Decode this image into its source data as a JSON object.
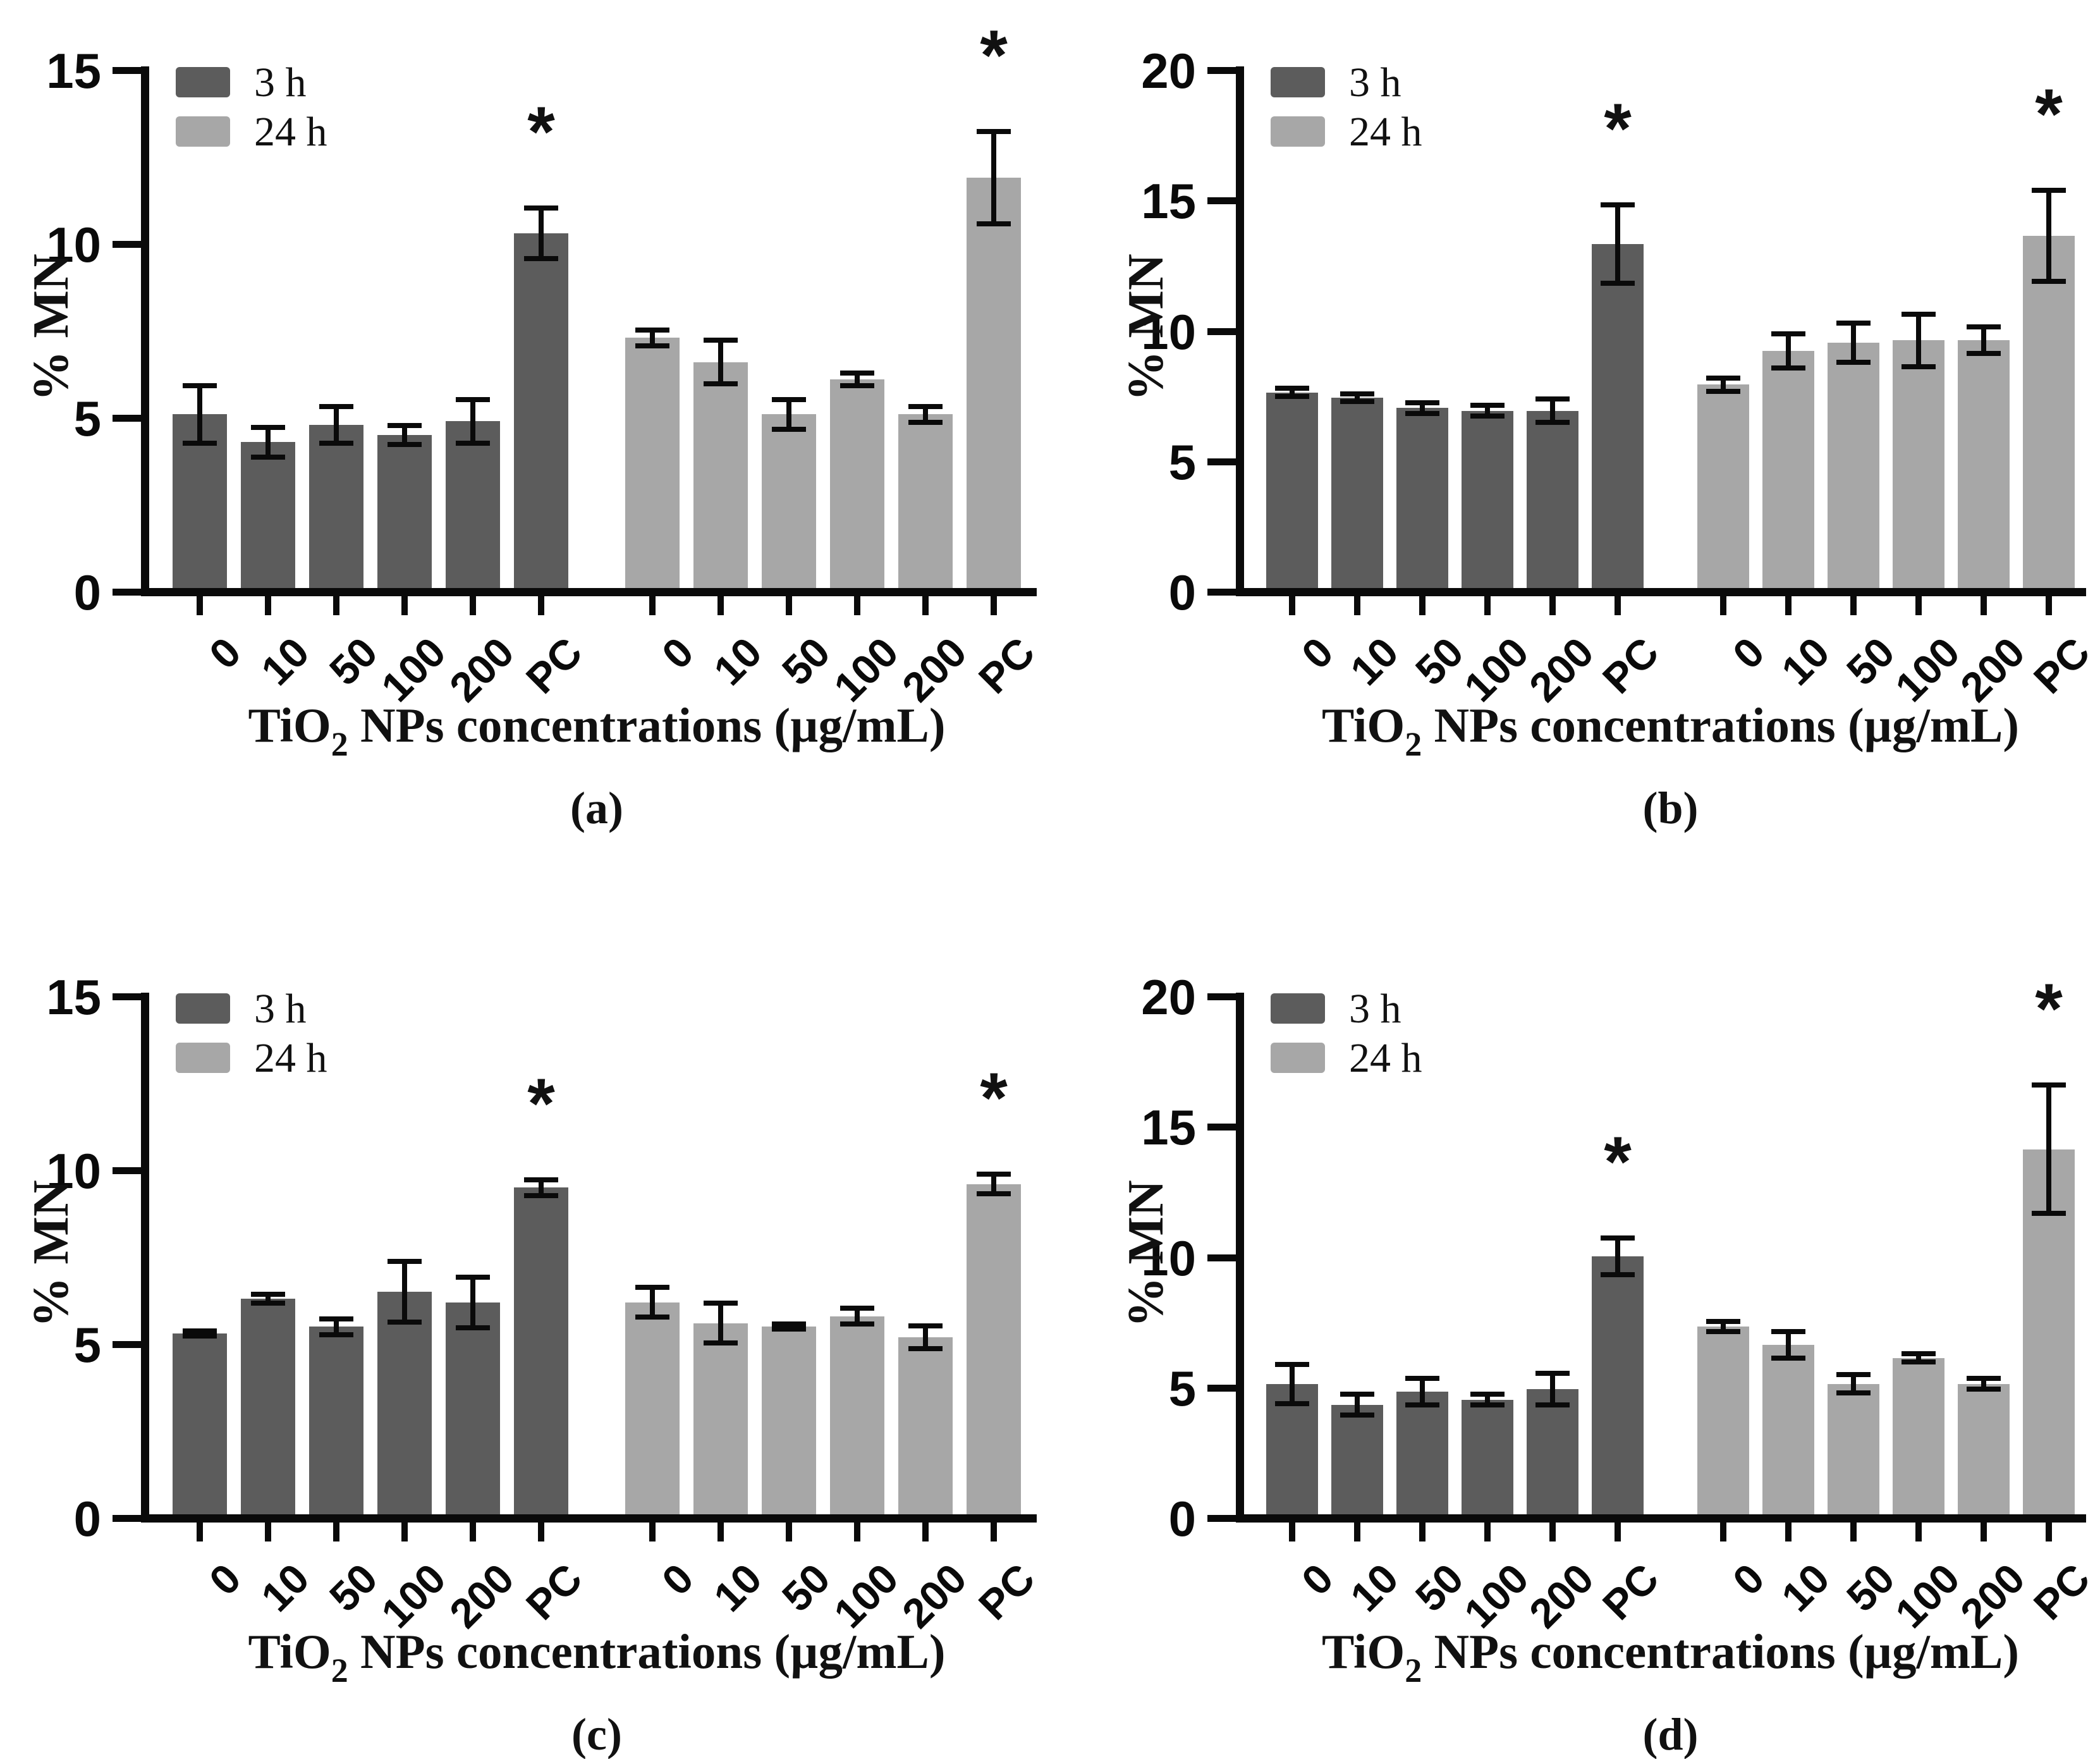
{
  "figure": {
    "background": "#ffffff",
    "axis_color": "#0a0a0a",
    "sig_marker": "*"
  },
  "legend": {
    "items": [
      {
        "label": "3 h",
        "color": "#5c5c5c"
      },
      {
        "label": "24 h",
        "color": "#a7a7a7"
      }
    ]
  },
  "chart_data": [
    {
      "id": "a",
      "type": "bar",
      "caption": "(a)",
      "ylabel": "% MN",
      "xlabel_pre": "TiO",
      "xlabel_sub": "2",
      "xlabel_post": " NPs concentrations (µg/mL)",
      "ylim": [
        0,
        15
      ],
      "yticks": [
        0,
        5,
        10,
        15
      ],
      "categories": [
        "0",
        "10",
        "50",
        "100",
        "200",
        "PC"
      ],
      "legend_position": "top-left",
      "grid": false,
      "series": [
        {
          "name": "3 h",
          "color": "#5c5c5c",
          "values": [
            5.0,
            4.2,
            4.7,
            4.4,
            4.8,
            10.2
          ],
          "errors": [
            0.9,
            0.5,
            0.6,
            0.35,
            0.7,
            0.8
          ],
          "significant": [
            false,
            false,
            false,
            false,
            false,
            true
          ]
        },
        {
          "name": "24 h",
          "color": "#a7a7a7",
          "values": [
            7.2,
            6.5,
            5.0,
            6.0,
            5.0,
            11.8
          ],
          "errors": [
            0.3,
            0.7,
            0.5,
            0.25,
            0.3,
            1.4
          ],
          "significant": [
            false,
            false,
            false,
            false,
            false,
            true
          ]
        }
      ]
    },
    {
      "id": "b",
      "type": "bar",
      "caption": "(b)",
      "ylabel": "% MN",
      "xlabel_pre": "TiO",
      "xlabel_sub": "2",
      "xlabel_post": " NPs concentrations (µg/mL)",
      "ylim": [
        0,
        20
      ],
      "yticks": [
        0,
        5,
        10,
        15,
        20
      ],
      "categories": [
        "0",
        "10",
        "50",
        "100",
        "200",
        "PC"
      ],
      "legend_position": "top-left",
      "grid": false,
      "series": [
        {
          "name": "3 h",
          "color": "#5c5c5c",
          "values": [
            7.5,
            7.3,
            6.9,
            6.8,
            6.8,
            13.2
          ],
          "errors": [
            0.25,
            0.25,
            0.3,
            0.3,
            0.55,
            1.6
          ],
          "significant": [
            false,
            false,
            false,
            false,
            false,
            true
          ]
        },
        {
          "name": "24 h",
          "color": "#a7a7a7",
          "values": [
            7.8,
            9.1,
            9.4,
            9.5,
            9.5,
            13.5
          ],
          "errors": [
            0.35,
            0.75,
            0.85,
            1.1,
            0.6,
            1.85
          ],
          "significant": [
            false,
            false,
            false,
            false,
            false,
            true
          ]
        }
      ]
    },
    {
      "id": "c",
      "type": "bar",
      "caption": "(c)",
      "ylabel": "% MN",
      "xlabel_pre": "TiO",
      "xlabel_sub": "2",
      "xlabel_post": " NPs concentrations (µg/mL)",
      "ylim": [
        0,
        15
      ],
      "yticks": [
        0,
        5,
        10,
        15
      ],
      "categories": [
        "0",
        "10",
        "50",
        "100",
        "200",
        "PC"
      ],
      "legend_position": "top-left",
      "grid": false,
      "series": [
        {
          "name": "3 h",
          "color": "#5c5c5c",
          "values": [
            5.2,
            6.2,
            5.4,
            6.4,
            6.1,
            9.4
          ],
          "errors": [
            0.15,
            0.2,
            0.3,
            0.95,
            0.8,
            0.3
          ],
          "significant": [
            false,
            false,
            false,
            false,
            false,
            true
          ]
        },
        {
          "name": "24 h",
          "color": "#a7a7a7",
          "values": [
            6.1,
            5.5,
            5.4,
            5.7,
            5.1,
            9.5
          ],
          "errors": [
            0.5,
            0.65,
            0.15,
            0.3,
            0.4,
            0.35
          ],
          "significant": [
            false,
            false,
            false,
            false,
            false,
            true
          ]
        }
      ]
    },
    {
      "id": "d",
      "type": "bar",
      "caption": "(d)",
      "ylabel": "% MN",
      "xlabel_pre": "TiO",
      "xlabel_sub": "2",
      "xlabel_post": " NPs concentrations (µg/mL)",
      "ylim": [
        0,
        20
      ],
      "yticks": [
        0,
        5,
        10,
        15,
        20
      ],
      "categories": [
        "0",
        "10",
        "50",
        "100",
        "200",
        "PC"
      ],
      "legend_position": "top-left",
      "grid": false,
      "series": [
        {
          "name": "3 h",
          "color": "#5c5c5c",
          "values": [
            5.0,
            4.2,
            4.7,
            4.4,
            4.8,
            9.9
          ],
          "errors": [
            0.85,
            0.5,
            0.6,
            0.3,
            0.7,
            0.8
          ],
          "significant": [
            false,
            false,
            false,
            false,
            false,
            true
          ]
        },
        {
          "name": "24 h",
          "color": "#a7a7a7",
          "values": [
            7.2,
            6.5,
            5.0,
            6.0,
            5.0,
            14.0
          ],
          "errors": [
            0.3,
            0.6,
            0.45,
            0.25,
            0.3,
            2.55
          ],
          "significant": [
            false,
            false,
            false,
            false,
            false,
            true
          ]
        }
      ]
    }
  ]
}
